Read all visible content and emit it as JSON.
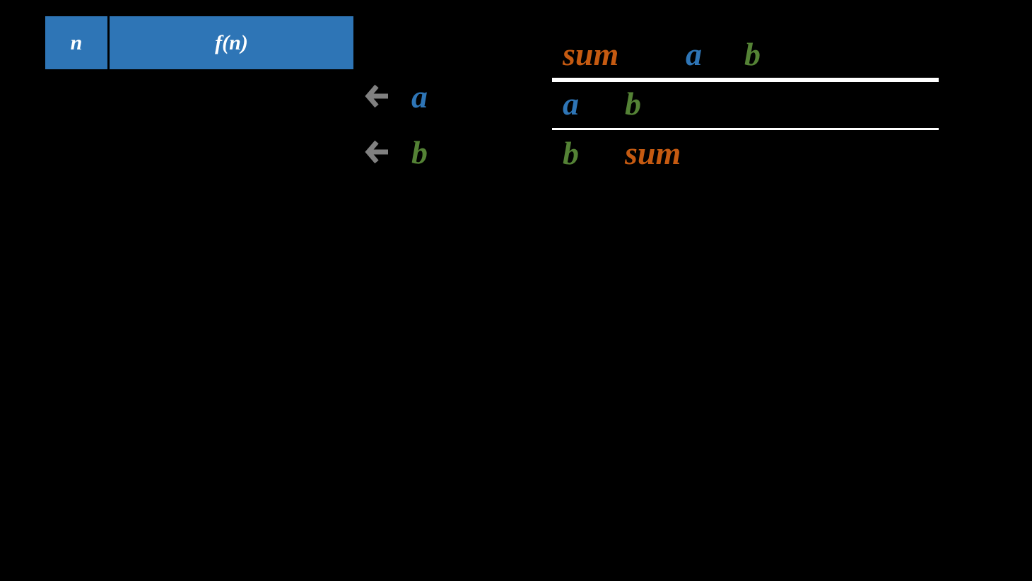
{
  "colors": {
    "sum": "#C55A11",
    "a": "#2E75B6",
    "b": "#548235",
    "arrow": "#808080",
    "header": "#2E75B6"
  },
  "header": {
    "col1": "n",
    "col2": "f(n)"
  },
  "assignments": [
    {
      "icon": "arrow-left-icon",
      "var": "a"
    },
    {
      "icon": "arrow-left-icon",
      "var": "b"
    }
  ],
  "table": {
    "row1": [
      "sum",
      "a",
      "b"
    ],
    "row2": [
      "a",
      "b"
    ],
    "row3": [
      "b",
      "sum"
    ]
  }
}
